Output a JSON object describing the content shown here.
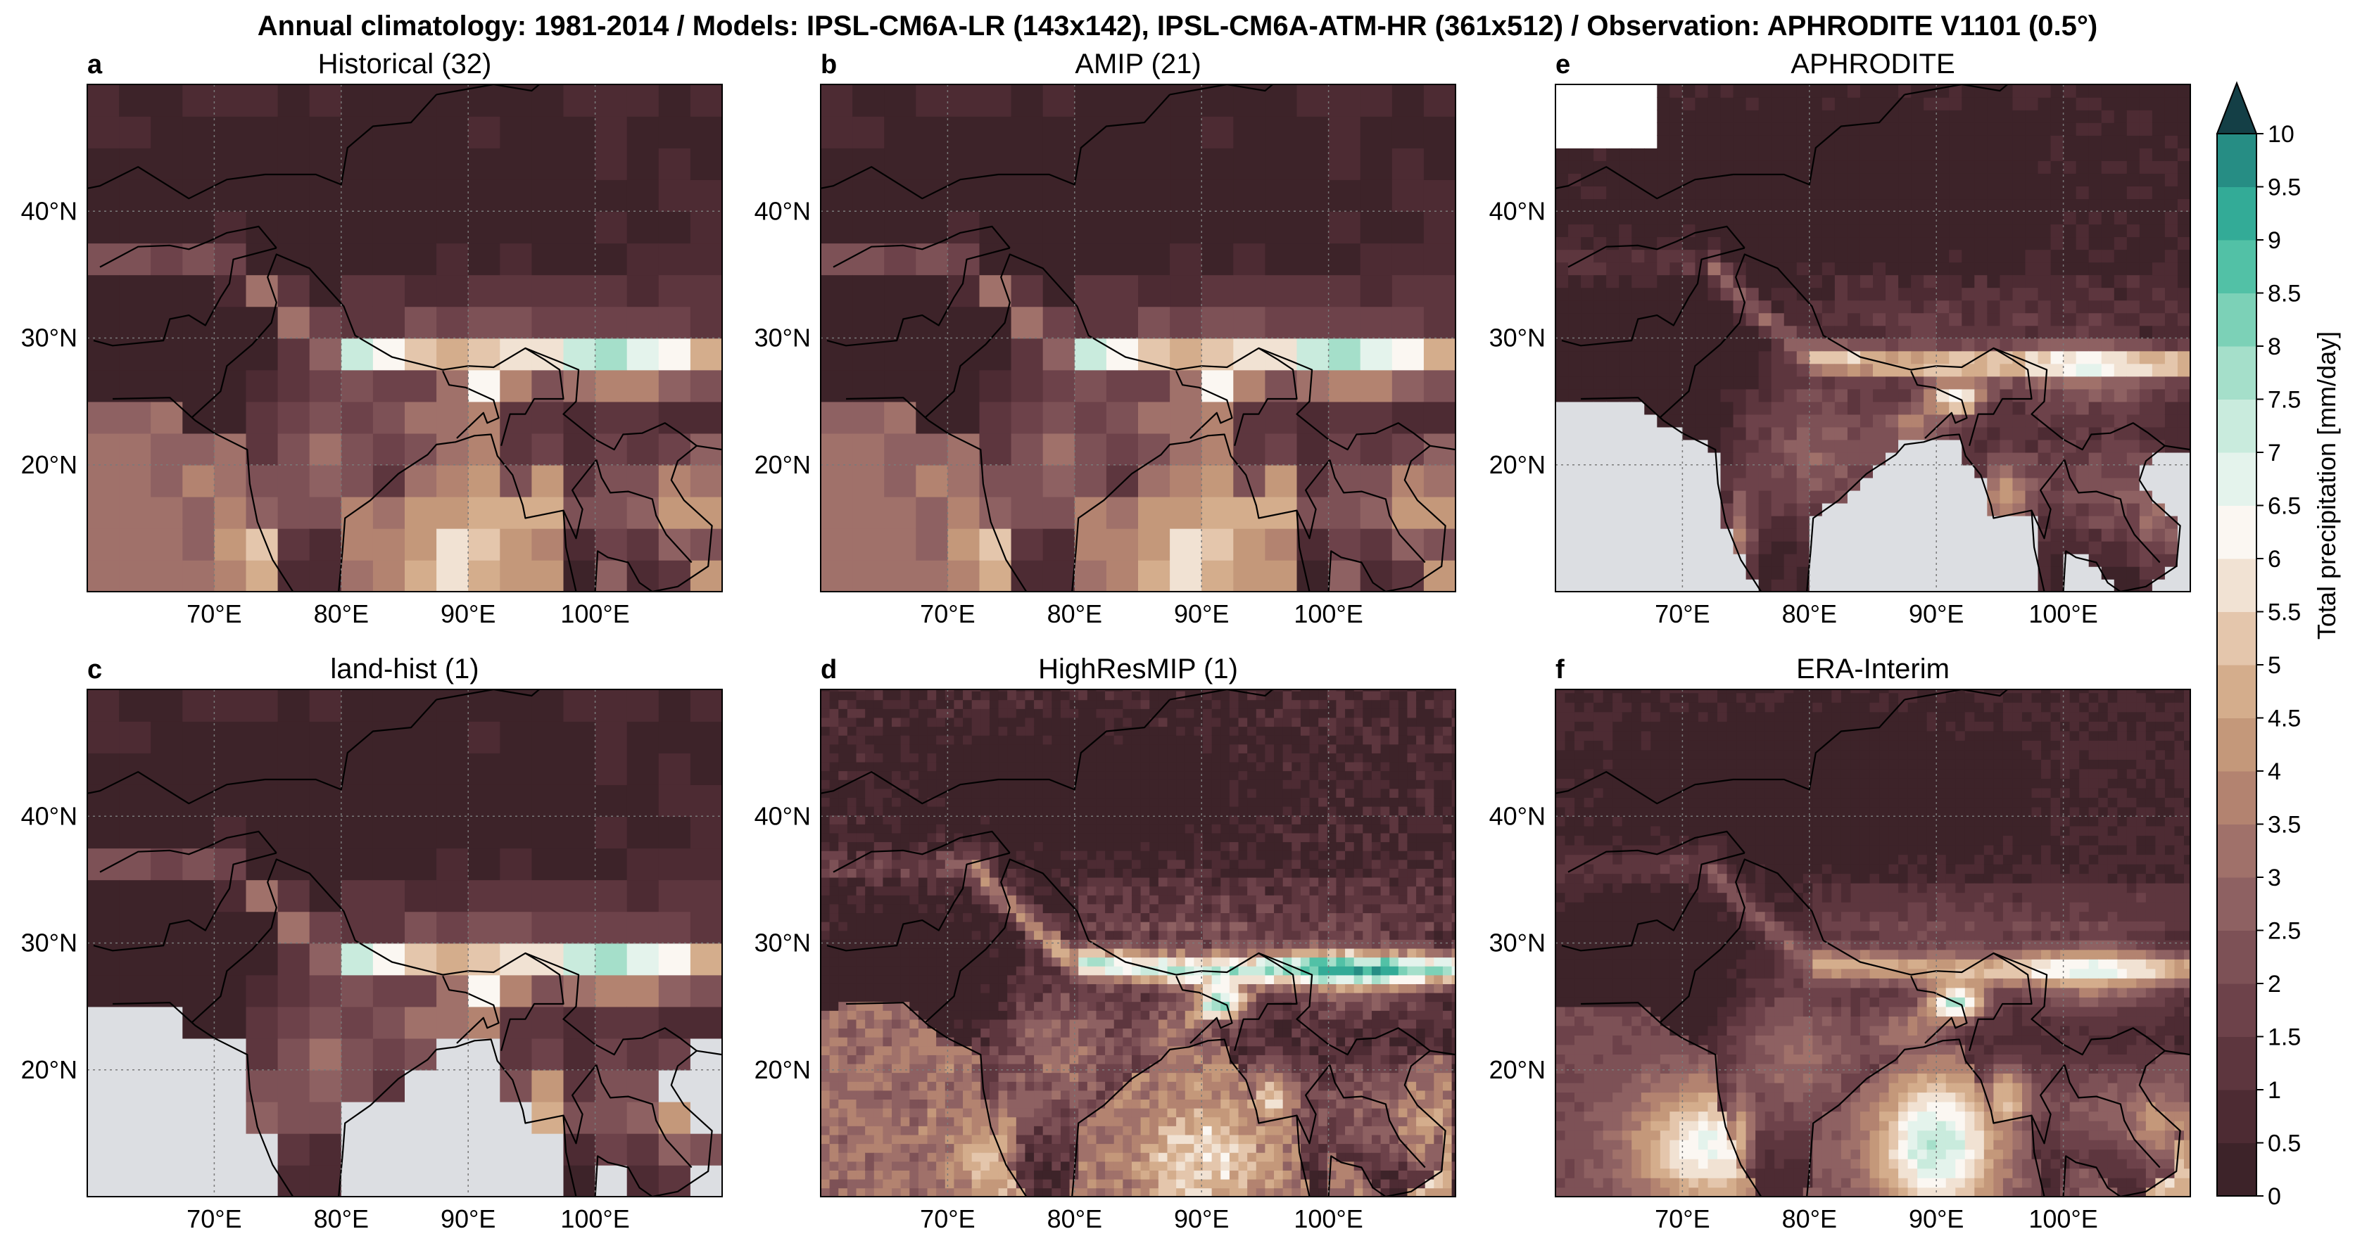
{
  "chart_data": {
    "type": "heatmap",
    "title": "Annual climatology: 1981-2014 / Models: IPSL-CM6A-LR (143x142), IPSL-CM6A-ATM-HR (361x512) / Observation: APHRODITE V1101 (0.5°)",
    "lon_range": [
      60,
      110
    ],
    "lat_range": [
      10,
      50
    ],
    "xticks": [
      "70°E",
      "80°E",
      "90°E",
      "100°E"
    ],
    "yticks": [
      "40°N",
      "30°N",
      "20°N"
    ],
    "colorbar": {
      "label": "Total precipitation [mm/day]",
      "range": [
        0,
        10
      ],
      "step": 0.5,
      "extend": "max",
      "ticks": [
        "0",
        "0.5",
        "1",
        "1.5",
        "2",
        "2.5",
        "3",
        "3.5",
        "4",
        "4.5",
        "5",
        "5.5",
        "6",
        "6.5",
        "7",
        "7.5",
        "8",
        "8.5",
        "9",
        "9.5",
        "10"
      ],
      "colors": [
        "#3d2329",
        "#4d2b33",
        "#5d363e",
        "#6d424a",
        "#7d5156",
        "#8e6162",
        "#a0716a",
        "#b38370",
        "#c4987a",
        "#d4ad8c",
        "#e4c6ac",
        "#f1e2d3",
        "#fbf7f2",
        "#e4f3ec",
        "#c9ebdd",
        "#a5dfca",
        "#7cd1b7",
        "#52c1a6",
        "#33ab97",
        "#268d84",
        "#1e7370",
        "#1a5d5c",
        "#143f46"
      ]
    },
    "panels": [
      {
        "letter": "a",
        "title": "Historical (32)",
        "kind": "model_lr"
      },
      {
        "letter": "b",
        "title": "AMIP (21)",
        "kind": "model_lr"
      },
      {
        "letter": "e",
        "title": "APHRODITE",
        "kind": "obs"
      },
      {
        "letter": "c",
        "title": "land-hist (1)",
        "kind": "land"
      },
      {
        "letter": "d",
        "title": "HighResMIP (1)",
        "kind": "model_hr"
      },
      {
        "letter": "f",
        "title": "ERA-Interim",
        "kind": "reanalysis"
      }
    ]
  }
}
